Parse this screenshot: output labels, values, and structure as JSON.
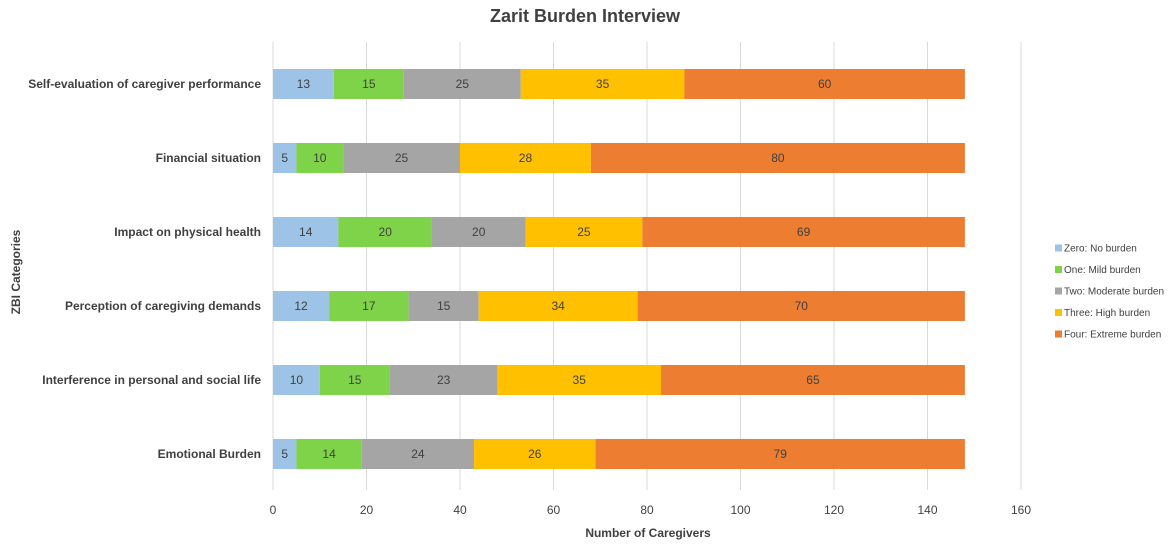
{
  "chart_data": {
    "type": "bar",
    "orientation": "horizontal",
    "stacked": true,
    "title": "Zarit Burden Interview",
    "xlabel": "Number of Caregivers",
    "ylabel": "ZBI Categories",
    "xlim": [
      0,
      160
    ],
    "xticks": [
      0,
      20,
      40,
      60,
      80,
      100,
      120,
      140,
      160
    ],
    "grid": "vertical",
    "legend_position": "right",
    "categories": [
      "Self-evaluation of caregiver performance",
      "Financial situation",
      "Impact on physical health",
      "Perception of caregiving demands",
      "Interference in personal and social life",
      "Emotional Burden"
    ],
    "series": [
      {
        "name": "Zero: No burden",
        "color": "#9DC3E6",
        "values": [
          13,
          5,
          14,
          12,
          10,
          5
        ]
      },
      {
        "name": "One: Mild burden",
        "color": "#7ED348",
        "values": [
          15,
          10,
          20,
          17,
          15,
          14
        ]
      },
      {
        "name": "Two: Moderate burden",
        "color": "#A5A5A5",
        "values": [
          25,
          25,
          20,
          15,
          23,
          24
        ]
      },
      {
        "name": "Three: High burden",
        "color": "#FFC000",
        "values": [
          35,
          28,
          25,
          34,
          35,
          26
        ]
      },
      {
        "name": "Four: Extreme burden",
        "color": "#ED7D31",
        "values": [
          60,
          80,
          69,
          70,
          65,
          79
        ]
      }
    ]
  }
}
